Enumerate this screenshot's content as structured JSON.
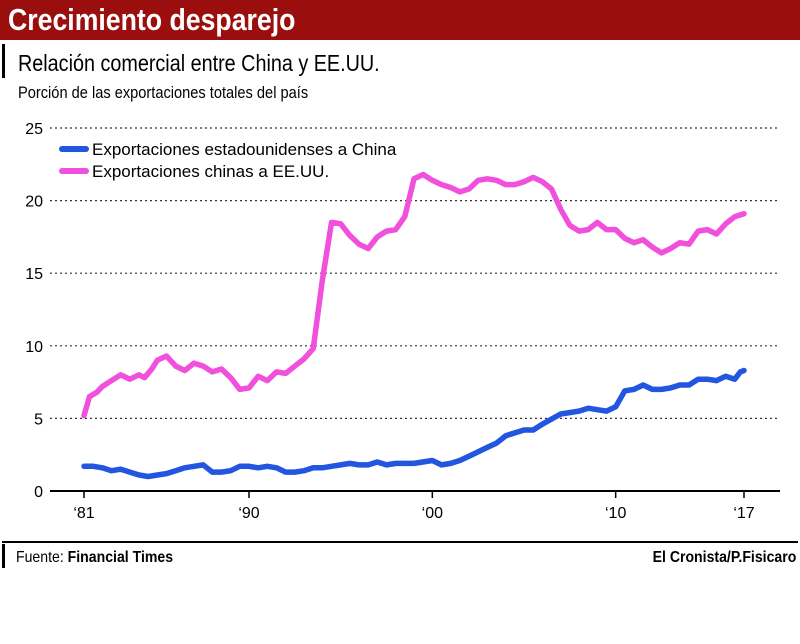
{
  "header": {
    "title": "Crecimiento desparejo",
    "subtitle": "Relación comercial entre China y EE.UU.",
    "description": "Porción de las exportaciones totales del país"
  },
  "footer": {
    "source_label": "Fuente:",
    "source_name": "Financial Times",
    "credit": "El Cronista/P.Fisicaro"
  },
  "colors": {
    "banner": "#9a0e0e",
    "us_series": "#2255e0",
    "china_series": "#f050dc",
    "gridline": "#333333"
  },
  "chart_data": {
    "type": "line",
    "title": "Relación comercial entre China y EE.UU.",
    "ylabel": "Porción de las exportaciones totales del país",
    "xlabel": "",
    "xlim": [
      1981,
      2017
    ],
    "ylim": [
      0,
      25
    ],
    "y_ticks": [
      0,
      5,
      10,
      15,
      20,
      25
    ],
    "x_ticks": [
      {
        "value": 1981,
        "label": "‘81"
      },
      {
        "value": 1990,
        "label": "‘90"
      },
      {
        "value": 2000,
        "label": "‘00"
      },
      {
        "value": 2010,
        "label": "‘10"
      },
      {
        "value": 2017,
        "label": "‘17"
      }
    ],
    "grid": "horizontal dotted",
    "legend_position": "top-left",
    "series": [
      {
        "name": "Exportaciones estadounidenses a China",
        "color": "#2255e0",
        "points": [
          [
            1981.0,
            1.7
          ],
          [
            1981.5,
            1.7
          ],
          [
            1982.0,
            1.6
          ],
          [
            1982.5,
            1.4
          ],
          [
            1983.0,
            1.5
          ],
          [
            1983.5,
            1.3
          ],
          [
            1984.0,
            1.1
          ],
          [
            1984.5,
            1.0
          ],
          [
            1985.0,
            1.1
          ],
          [
            1985.5,
            1.2
          ],
          [
            1986.0,
            1.4
          ],
          [
            1986.5,
            1.6
          ],
          [
            1987.0,
            1.7
          ],
          [
            1987.5,
            1.8
          ],
          [
            1988.0,
            1.3
          ],
          [
            1988.5,
            1.3
          ],
          [
            1989.0,
            1.4
          ],
          [
            1989.5,
            1.7
          ],
          [
            1990.0,
            1.7
          ],
          [
            1990.5,
            1.6
          ],
          [
            1991.0,
            1.7
          ],
          [
            1991.5,
            1.6
          ],
          [
            1992.0,
            1.3
          ],
          [
            1992.5,
            1.3
          ],
          [
            1993.0,
            1.4
          ],
          [
            1993.5,
            1.6
          ],
          [
            1994.0,
            1.6
          ],
          [
            1994.5,
            1.7
          ],
          [
            1995.0,
            1.8
          ],
          [
            1995.5,
            1.9
          ],
          [
            1996.0,
            1.8
          ],
          [
            1996.5,
            1.8
          ],
          [
            1997.0,
            2.0
          ],
          [
            1997.5,
            1.8
          ],
          [
            1998.0,
            1.9
          ],
          [
            1999.0,
            1.9
          ],
          [
            2000.0,
            2.1
          ],
          [
            2000.5,
            1.8
          ],
          [
            2001.0,
            1.9
          ],
          [
            2001.5,
            2.1
          ],
          [
            2002.0,
            2.4
          ],
          [
            2003.0,
            3.0
          ],
          [
            2003.5,
            3.3
          ],
          [
            2004.0,
            3.8
          ],
          [
            2004.5,
            4.0
          ],
          [
            2005.0,
            4.2
          ],
          [
            2005.5,
            4.2
          ],
          [
            2006.0,
            4.6
          ],
          [
            2007.0,
            5.3
          ],
          [
            2008.0,
            5.5
          ],
          [
            2008.5,
            5.7
          ],
          [
            2009.0,
            5.6
          ],
          [
            2009.5,
            5.5
          ],
          [
            2010.0,
            5.8
          ],
          [
            2010.5,
            6.9
          ],
          [
            2011.0,
            7.0
          ],
          [
            2011.5,
            7.3
          ],
          [
            2012.0,
            7.0
          ],
          [
            2012.5,
            7.0
          ],
          [
            2013.0,
            7.1
          ],
          [
            2013.5,
            7.3
          ],
          [
            2014.0,
            7.3
          ],
          [
            2014.5,
            7.7
          ],
          [
            2015.0,
            7.7
          ],
          [
            2015.5,
            7.6
          ],
          [
            2016.0,
            7.9
          ],
          [
            2016.5,
            7.7
          ],
          [
            2016.8,
            8.2
          ],
          [
            2017.0,
            8.3
          ]
        ]
      },
      {
        "name": "Exportaciones chinas a EE.UU.",
        "color": "#f050dc",
        "points": [
          [
            1981.0,
            5.2
          ],
          [
            1981.3,
            6.5
          ],
          [
            1981.7,
            6.8
          ],
          [
            1982.0,
            7.2
          ],
          [
            1982.5,
            7.6
          ],
          [
            1983.0,
            8.0
          ],
          [
            1983.5,
            7.7
          ],
          [
            1984.0,
            8.0
          ],
          [
            1984.3,
            7.8
          ],
          [
            1984.7,
            8.4
          ],
          [
            1985.0,
            9.0
          ],
          [
            1985.5,
            9.3
          ],
          [
            1986.0,
            8.6
          ],
          [
            1986.5,
            8.3
          ],
          [
            1987.0,
            8.8
          ],
          [
            1987.5,
            8.6
          ],
          [
            1988.0,
            8.2
          ],
          [
            1988.5,
            8.4
          ],
          [
            1989.0,
            7.8
          ],
          [
            1989.5,
            7.0
          ],
          [
            1990.0,
            7.1
          ],
          [
            1990.5,
            7.9
          ],
          [
            1991.0,
            7.6
          ],
          [
            1991.5,
            8.2
          ],
          [
            1992.0,
            8.1
          ],
          [
            1992.5,
            8.6
          ],
          [
            1993.0,
            9.1
          ],
          [
            1993.5,
            9.8
          ],
          [
            1994.0,
            14.5
          ],
          [
            1994.5,
            18.5
          ],
          [
            1995.0,
            18.4
          ],
          [
            1995.5,
            17.6
          ],
          [
            1996.0,
            17.0
          ],
          [
            1996.5,
            16.7
          ],
          [
            1997.0,
            17.5
          ],
          [
            1997.5,
            17.9
          ],
          [
            1998.0,
            18.0
          ],
          [
            1998.5,
            18.9
          ],
          [
            1999.0,
            21.5
          ],
          [
            1999.5,
            21.8
          ],
          [
            2000.0,
            21.4
          ],
          [
            2000.5,
            21.1
          ],
          [
            2001.0,
            20.9
          ],
          [
            2001.5,
            20.6
          ],
          [
            2002.0,
            20.8
          ],
          [
            2002.5,
            21.4
          ],
          [
            2003.0,
            21.5
          ],
          [
            2003.5,
            21.4
          ],
          [
            2004.0,
            21.1
          ],
          [
            2004.5,
            21.1
          ],
          [
            2005.0,
            21.3
          ],
          [
            2005.5,
            21.6
          ],
          [
            2006.0,
            21.3
          ],
          [
            2006.5,
            20.8
          ],
          [
            2007.0,
            19.4
          ],
          [
            2007.5,
            18.3
          ],
          [
            2008.0,
            17.9
          ],
          [
            2008.5,
            18.0
          ],
          [
            2009.0,
            18.5
          ],
          [
            2009.5,
            18.0
          ],
          [
            2010.0,
            18.0
          ],
          [
            2010.5,
            17.4
          ],
          [
            2011.0,
            17.1
          ],
          [
            2011.5,
            17.3
          ],
          [
            2012.0,
            16.8
          ],
          [
            2012.5,
            16.4
          ],
          [
            2013.0,
            16.7
          ],
          [
            2013.5,
            17.1
          ],
          [
            2014.0,
            17.0
          ],
          [
            2014.5,
            17.9
          ],
          [
            2015.0,
            18.0
          ],
          [
            2015.5,
            17.7
          ],
          [
            2016.0,
            18.4
          ],
          [
            2016.5,
            18.9
          ],
          [
            2017.0,
            19.1
          ]
        ]
      }
    ]
  }
}
